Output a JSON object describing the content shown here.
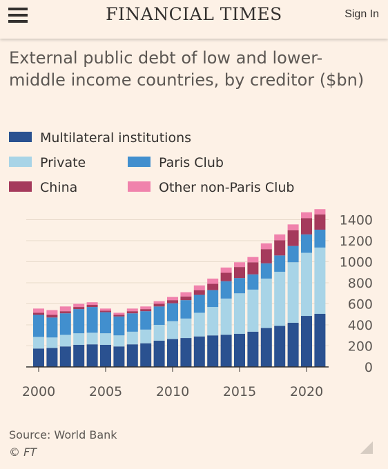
{
  "header": {
    "brand": "FINANCIAL TIMES",
    "sign_in": "Sign In"
  },
  "chart_title": "External public debt of low and lower-middle income countries, by creditor ($bn)",
  "source": "Source: World Bank",
  "copyright": "© FT",
  "chart_data": {
    "type": "bar",
    "stacked": true,
    "title": "External public debt of low and lower-middle income countries, by creditor ($bn)",
    "xlabel": "",
    "ylabel": "",
    "ylim": [
      0,
      1500
    ],
    "yticks": [
      0,
      200,
      400,
      600,
      800,
      1000,
      1200,
      1400
    ],
    "y_axis_side": "right",
    "grid": true,
    "legend_placement": "top-left",
    "categories": [
      "2000",
      "2001",
      "2002",
      "2003",
      "2004",
      "2005",
      "2006",
      "2007",
      "2008",
      "2009",
      "2010",
      "2011",
      "2012",
      "2013",
      "2014",
      "2015",
      "2016",
      "2017",
      "2018",
      "2019",
      "2020",
      "2021"
    ],
    "xtick_labels": [
      "2000",
      "2005",
      "2010",
      "2015",
      "2020"
    ],
    "series": [
      {
        "name": "Multilateral institutions",
        "color": "#2a5190",
        "values": [
          175,
          180,
          195,
          210,
          215,
          210,
          195,
          215,
          225,
          250,
          265,
          275,
          290,
          300,
          305,
          315,
          335,
          370,
          390,
          420,
          485,
          505
        ]
      },
      {
        "name": "Private",
        "color": "#a8d4e7",
        "values": [
          110,
          100,
          110,
          110,
          110,
          110,
          105,
          120,
          130,
          150,
          170,
          185,
          225,
          270,
          345,
          385,
          400,
          470,
          515,
          575,
          600,
          630
        ]
      },
      {
        "name": "Paris Club",
        "color": "#418fce",
        "values": [
          210,
          190,
          205,
          230,
          245,
          200,
          180,
          175,
          175,
          175,
          170,
          175,
          170,
          160,
          165,
          145,
          145,
          145,
          155,
          155,
          175,
          170
        ]
      },
      {
        "name": "China",
        "color": "#a53a5c",
        "values": [
          20,
          25,
          20,
          20,
          20,
          15,
          15,
          20,
          20,
          25,
          30,
          35,
          45,
          60,
          80,
          105,
          115,
          135,
          145,
          150,
          155,
          145
        ]
      },
      {
        "name": "Other non-Paris Club",
        "color": "#f082ac",
        "values": [
          40,
          45,
          45,
          30,
          25,
          20,
          20,
          25,
          25,
          25,
          30,
          40,
          45,
          50,
          50,
          45,
          50,
          55,
          55,
          55,
          55,
          50
        ]
      }
    ],
    "legend_layout": [
      [
        "Multilateral institutions"
      ],
      [
        "Private",
        "Paris Club"
      ],
      [
        "China",
        "Other non-Paris Club"
      ]
    ]
  }
}
